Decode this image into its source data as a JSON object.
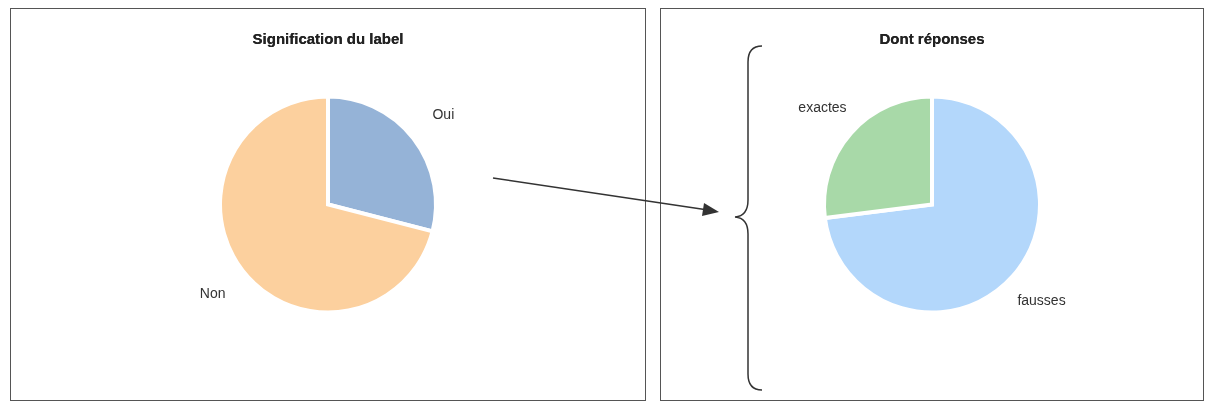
{
  "chart_data": [
    {
      "type": "pie",
      "title": "Signification du label",
      "categories": [
        "Oui",
        "Non"
      ],
      "values": [
        29,
        71
      ],
      "colors": [
        "#95b3d7",
        "#fcd09e"
      ]
    },
    {
      "type": "pie",
      "title": "Dont réponses",
      "categories": [
        "fausses",
        "exactes"
      ],
      "values": [
        73,
        27
      ],
      "colors": [
        "#b3d7fb",
        "#a8d9a8"
      ]
    }
  ]
}
